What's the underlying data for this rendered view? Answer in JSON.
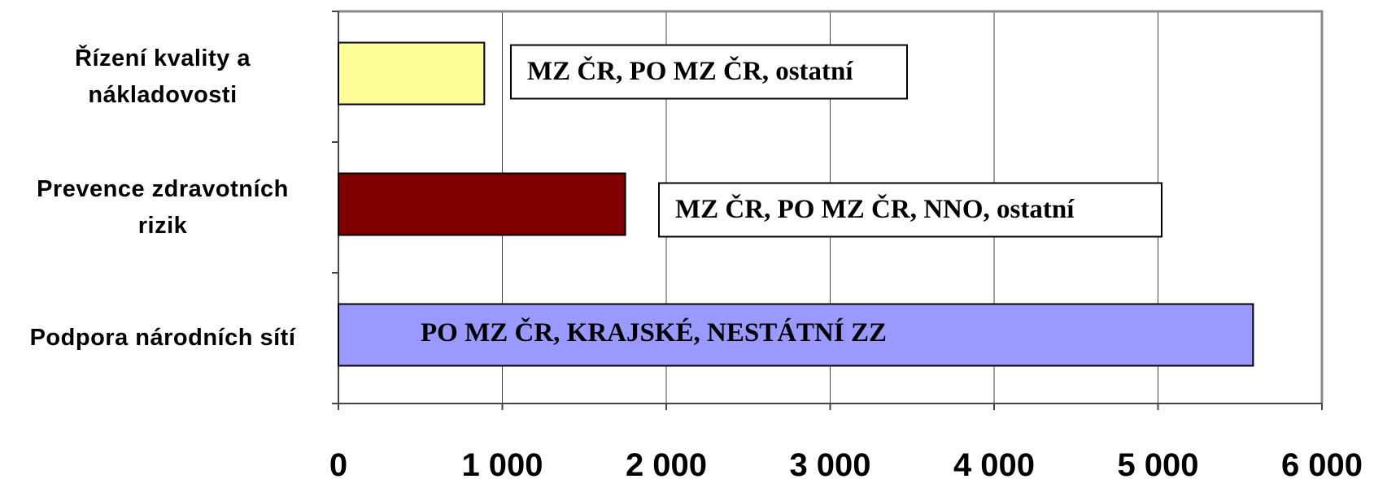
{
  "chart_data": {
    "type": "barh",
    "categories": [
      "Řízení kvality a\nnákladovosti",
      "Prevence zdravotních\nrizik",
      "Podpora národních sítí"
    ],
    "values": [
      890,
      1750,
      5580
    ],
    "colors": [
      "#ffff99",
      "#800000",
      "#9999ff"
    ],
    "annotations": [
      "MZ ČR, PO MZ ČR, ostatní",
      "MZ ČR, PO MZ ČR, NNO, ostatní",
      "PO MZ ČR, KRAJSKÉ, NESTÁTNÍ ZZ"
    ],
    "xlim": [
      0,
      6000
    ],
    "xticks": [
      0,
      {
        "value": 1000,
        "label": "1 000"
      },
      {
        "value": 2000,
        "label": "2 000"
      },
      {
        "value": 3000,
        "label": "3 000"
      },
      {
        "value": 4000,
        "label": "4 000"
      },
      {
        "value": 5000,
        "label": "5 000"
      },
      {
        "value": 6000,
        "label": "6 000"
      }
    ],
    "grid": true
  }
}
